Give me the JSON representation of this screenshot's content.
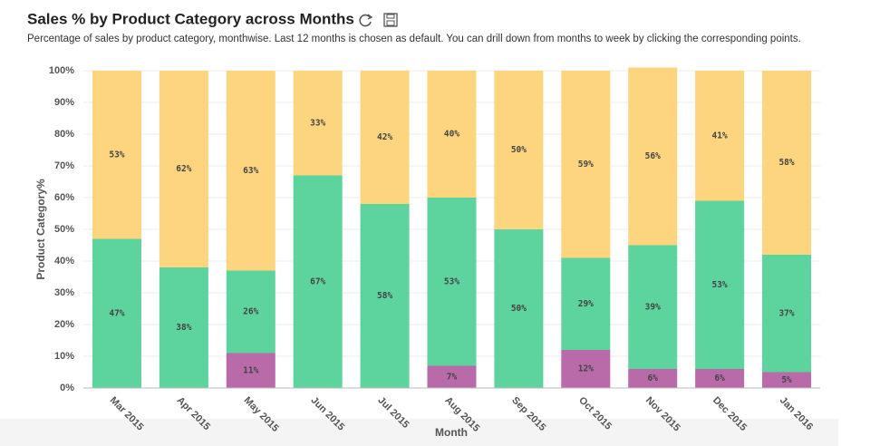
{
  "chart_data": {
    "type": "stacked_bar",
    "title": "Sales % by Product Category across Months",
    "subtitle": "Percentage of sales by product category, monthwise. Last 12 months is chosen as default. You can drill down from months to week by clicking the corresponding points.",
    "x_label": "Month",
    "y_label": "Product Category%",
    "categories": [
      "Mar 2015",
      "Apr 2015",
      "May 2015",
      "Jun 2015",
      "Jul 2015",
      "Aug 2015",
      "Sep 2015",
      "Oct 2015",
      "Nov 2015",
      "Dec 2015",
      "Jan 2016"
    ],
    "series": [
      {
        "color": "#b96aa9",
        "values": [
          null,
          null,
          11,
          null,
          null,
          7,
          null,
          12,
          6,
          6,
          5
        ],
        "value_labels": [
          null,
          null,
          "11%",
          null,
          null,
          "7%",
          null,
          "12%",
          "6%",
          "6%",
          "5%"
        ]
      },
      {
        "color": "#5dd39e",
        "values": [
          47,
          38,
          26,
          67,
          58,
          53,
          50,
          29,
          39,
          53,
          37
        ],
        "value_labels": [
          "47%",
          "38%",
          "26%",
          "67%",
          "58%",
          "53%",
          "50%",
          "29%",
          "39%",
          "53%",
          "37%"
        ]
      },
      {
        "color": "#fdd57e",
        "values": [
          53,
          62,
          63,
          33,
          42,
          40,
          50,
          59,
          56,
          41,
          58
        ],
        "value_labels": [
          "53%",
          "62%",
          "63%",
          "33%",
          "42%",
          "40%",
          "50%",
          "59%",
          "56%",
          "41%",
          "58%"
        ]
      }
    ],
    "ylim": [
      0,
      100
    ],
    "yticks": [
      {
        "value": 0,
        "label": "0%"
      },
      {
        "value": 10,
        "label": "10%"
      },
      {
        "value": 20,
        "label": "20%"
      },
      {
        "value": 30,
        "label": "30%"
      },
      {
        "value": 40,
        "label": "40%"
      },
      {
        "value": 50,
        "label": "50%"
      },
      {
        "value": 60,
        "label": "60%"
      },
      {
        "value": 70,
        "label": "70%"
      },
      {
        "value": 80,
        "label": "80%"
      },
      {
        "value": 90,
        "label": "90%"
      },
      {
        "value": 100,
        "label": "100%"
      }
    ],
    "grid": true
  }
}
